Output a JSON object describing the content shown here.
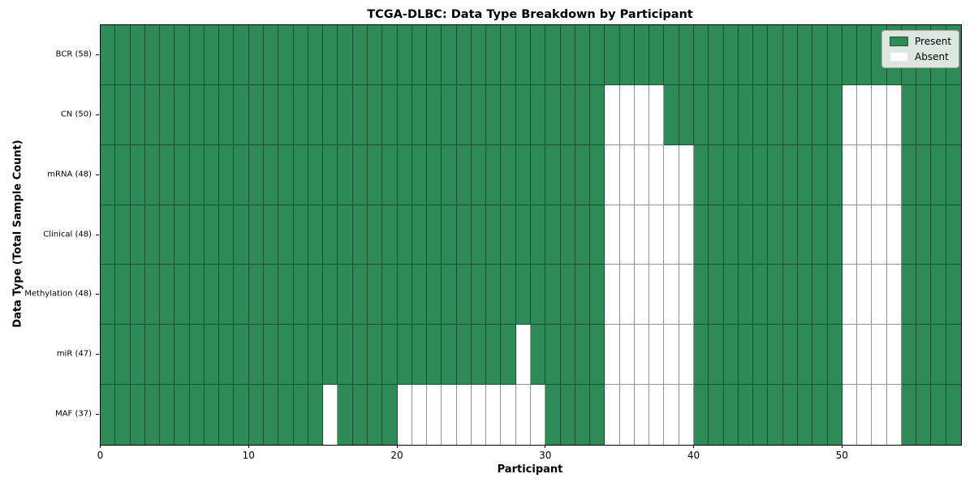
{
  "title": "TCGA-DLBC: Data Type Breakdown by Participant",
  "chart_data": {
    "type": "heatmap",
    "title": "TCGA-DLBC: Data Type Breakdown by Participant",
    "xlabel": "Participant",
    "ylabel": "Data Type (Total Sample Count)",
    "n_participants": 58,
    "x_ticks": [
      0,
      10,
      20,
      30,
      40,
      50
    ],
    "x_range": [
      0,
      58
    ],
    "grid": false,
    "legend_position": "upper right",
    "colors": {
      "present": "#2e8b57",
      "absent": "#ffffff"
    },
    "legend": [
      {
        "label": "Present",
        "color": "#2e8b57"
      },
      {
        "label": "Absent",
        "color": "#ffffff"
      }
    ],
    "rows": [
      {
        "label": "BCR (58)",
        "name": "BCR",
        "total": 58,
        "absent": []
      },
      {
        "label": "CN (50)",
        "name": "CN",
        "total": 50,
        "absent": [
          34,
          35,
          36,
          37,
          50,
          51,
          52,
          53
        ]
      },
      {
        "label": "mRNA (48)",
        "name": "mRNA",
        "total": 48,
        "absent": [
          34,
          35,
          36,
          37,
          38,
          39,
          50,
          51,
          52,
          53
        ]
      },
      {
        "label": "Clinical (48)",
        "name": "Clinical",
        "total": 48,
        "absent": [
          34,
          35,
          36,
          37,
          38,
          39,
          50,
          51,
          52,
          53
        ]
      },
      {
        "label": "Methylation (48)",
        "name": "Methylation",
        "total": 48,
        "absent": [
          34,
          35,
          36,
          37,
          38,
          39,
          50,
          51,
          52,
          53
        ]
      },
      {
        "label": "miR (47)",
        "name": "miR",
        "total": 47,
        "absent": [
          28,
          34,
          35,
          36,
          37,
          38,
          39,
          50,
          51,
          52,
          53
        ]
      },
      {
        "label": "MAF (37)",
        "name": "MAF",
        "total": 37,
        "absent": [
          15,
          20,
          21,
          22,
          23,
          24,
          25,
          26,
          27,
          28,
          29,
          34,
          35,
          36,
          37,
          38,
          39,
          50,
          51,
          52,
          53
        ]
      }
    ]
  }
}
